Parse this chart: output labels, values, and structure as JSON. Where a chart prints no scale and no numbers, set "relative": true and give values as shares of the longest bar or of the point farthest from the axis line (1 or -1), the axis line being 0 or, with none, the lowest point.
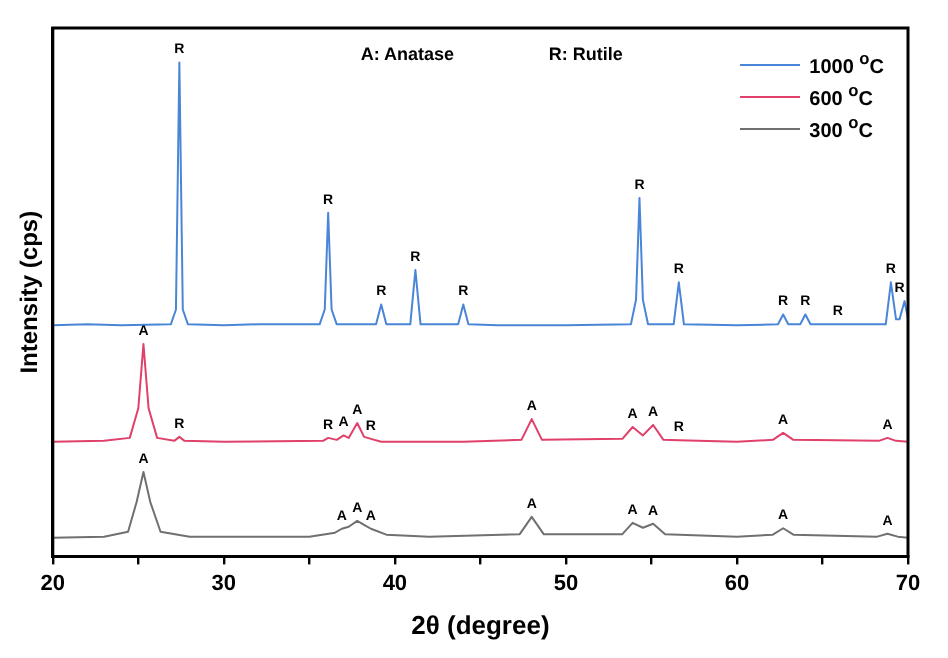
{
  "chart_data": {
    "type": "line",
    "xlabel": "2θ (degree)",
    "ylabel": "Intensity (cps)",
    "relative": true,
    "legend": "top right",
    "marker": "none",
    "line_style": "solid",
    "grid": false,
    "xlim": [
      20,
      70
    ],
    "xticks": [
      20,
      {
        "value": 25,
        "label": null
      },
      30,
      {
        "value": 35,
        "label": null
      },
      40,
      {
        "value": 45,
        "label": null
      },
      50,
      {
        "value": 55,
        "label": null
      },
      60,
      {
        "value": 65,
        "label": null
      },
      70
    ],
    "series": [
      {
        "name": "1000 $^{o}$C",
        "color": "#4a86d8",
        "x": [
          20,
          22,
          24,
          26.9,
          27.2,
          27.4,
          27.6,
          27.9,
          30,
          32,
          35.6,
          35.9,
          36.1,
          36.3,
          36.6,
          38.9,
          39.2,
          39.5,
          40.9,
          41.2,
          41.5,
          43.7,
          44.0,
          44.3,
          46,
          50,
          53.8,
          54.1,
          54.3,
          54.5,
          54.8,
          56.3,
          56.6,
          56.9,
          60,
          62.4,
          62.7,
          63.0,
          63.7,
          64.0,
          64.3,
          68.7,
          69.0,
          69.3,
          69.5,
          69.8,
          70
        ],
        "values": [
          0.468,
          0.47,
          0.468,
          0.47,
          0.5,
          1.0,
          0.5,
          0.47,
          0.468,
          0.47,
          0.47,
          0.5,
          0.696,
          0.5,
          0.47,
          0.47,
          0.51,
          0.47,
          0.47,
          0.58,
          0.47,
          0.47,
          0.51,
          0.47,
          0.468,
          0.468,
          0.47,
          0.52,
          0.726,
          0.52,
          0.47,
          0.47,
          0.555,
          0.47,
          0.468,
          0.47,
          0.49,
          0.47,
          0.47,
          0.49,
          0.47,
          0.47,
          0.555,
          0.48,
          0.48,
          0.517,
          0.48
        ]
      },
      {
        "name": "600 $^{o}$C",
        "color": "#e0406a",
        "x": [
          20,
          23,
          24.5,
          25.0,
          25.3,
          25.6,
          26.1,
          27.1,
          27.4,
          27.7,
          30,
          35.8,
          36.1,
          36.6,
          37.0,
          37.3,
          37.8,
          38.2,
          38.6,
          39.2,
          44,
          47.4,
          48.0,
          48.6,
          53.3,
          53.9,
          54.5,
          55.1,
          55.7,
          56.6,
          60,
          62.1,
          62.7,
          63.3,
          68.3,
          68.8,
          69.3,
          70
        ],
        "values": [
          0.232,
          0.234,
          0.24,
          0.3,
          0.43,
          0.3,
          0.24,
          0.234,
          0.242,
          0.234,
          0.232,
          0.234,
          0.24,
          0.236,
          0.245,
          0.24,
          0.27,
          0.242,
          0.238,
          0.232,
          0.232,
          0.236,
          0.278,
          0.236,
          0.238,
          0.262,
          0.245,
          0.266,
          0.236,
          0.235,
          0.232,
          0.236,
          0.25,
          0.236,
          0.234,
          0.24,
          0.234,
          0.232
        ]
      },
      {
        "name": "300 $^{o}$C",
        "color": "#707070",
        "x": [
          20,
          23,
          24.4,
          24.9,
          25.3,
          25.7,
          26.3,
          28,
          35,
          36.5,
          36.9,
          37.3,
          37.8,
          38.3,
          38.6,
          39.5,
          42,
          47.3,
          48.0,
          48.7,
          53.3,
          53.9,
          54.5,
          55.1,
          55.8,
          60,
          62.1,
          62.7,
          63.3,
          68.2,
          68.8,
          69.4,
          70
        ],
        "values": [
          0.038,
          0.04,
          0.05,
          0.11,
          0.171,
          0.11,
          0.05,
          0.04,
          0.04,
          0.048,
          0.056,
          0.06,
          0.072,
          0.062,
          0.056,
          0.044,
          0.04,
          0.045,
          0.08,
          0.045,
          0.045,
          0.068,
          0.058,
          0.066,
          0.045,
          0.04,
          0.044,
          0.057,
          0.044,
          0.04,
          0.046,
          0.04,
          0.038
        ]
      }
    ],
    "annotations": [
      "A: Anatase",
      "R: Rutile",
      {
        "text": "R",
        "x": 27.4,
        "y": 1.0
      },
      {
        "text": "R",
        "x": 36.1,
        "y": 0.696
      },
      {
        "text": "R",
        "x": 39.2,
        "y": 0.51
      },
      {
        "text": "R",
        "x": 41.2,
        "y": 0.58
      },
      {
        "text": "R",
        "x": 44.0,
        "y": 0.51
      },
      {
        "text": "R",
        "x": 54.3,
        "y": 0.726
      },
      {
        "text": "R",
        "x": 56.6,
        "y": 0.555
      },
      {
        "text": "R",
        "x": 62.7,
        "y": 0.49
      },
      {
        "text": "R",
        "x": 64.0,
        "y": 0.49
      },
      {
        "text": "R",
        "x": 65.9,
        "y": 0.47
      },
      {
        "text": "R",
        "x": 69.0,
        "y": 0.555
      },
      {
        "text": "R",
        "x": 69.5,
        "y": 0.517
      },
      {
        "text": "A",
        "x": 25.3,
        "y": 0.43
      },
      {
        "text": "R",
        "x": 27.4,
        "y": 0.242
      },
      {
        "text": "R",
        "x": 36.1,
        "y": 0.24
      },
      {
        "text": "A",
        "x": 37.0,
        "y": 0.245
      },
      {
        "text": "A",
        "x": 37.8,
        "y": 0.27
      },
      {
        "text": "R",
        "x": 38.6,
        "y": 0.238
      },
      {
        "text": "A",
        "x": 48.0,
        "y": 0.278
      },
      {
        "text": "A",
        "x": 53.9,
        "y": 0.262
      },
      {
        "text": "A",
        "x": 55.1,
        "y": 0.266
      },
      {
        "text": "R",
        "x": 56.6,
        "y": 0.235
      },
      {
        "text": "A",
        "x": 62.7,
        "y": 0.25
      },
      {
        "text": "A",
        "x": 68.8,
        "y": 0.24
      },
      {
        "text": "A",
        "x": 25.3,
        "y": 0.171
      },
      {
        "text": "A",
        "x": 36.9,
        "y": 0.056
      },
      {
        "text": "A",
        "x": 37.8,
        "y": 0.072
      },
      {
        "text": "A",
        "x": 38.6,
        "y": 0.056
      },
      {
        "text": "A",
        "x": 48.0,
        "y": 0.08
      },
      {
        "text": "A",
        "x": 53.9,
        "y": 0.068
      },
      {
        "text": "A",
        "x": 55.1,
        "y": 0.066
      },
      {
        "text": "A",
        "x": 62.7,
        "y": 0.057
      },
      {
        "text": "A",
        "x": 68.8,
        "y": 0.046
      }
    ]
  }
}
